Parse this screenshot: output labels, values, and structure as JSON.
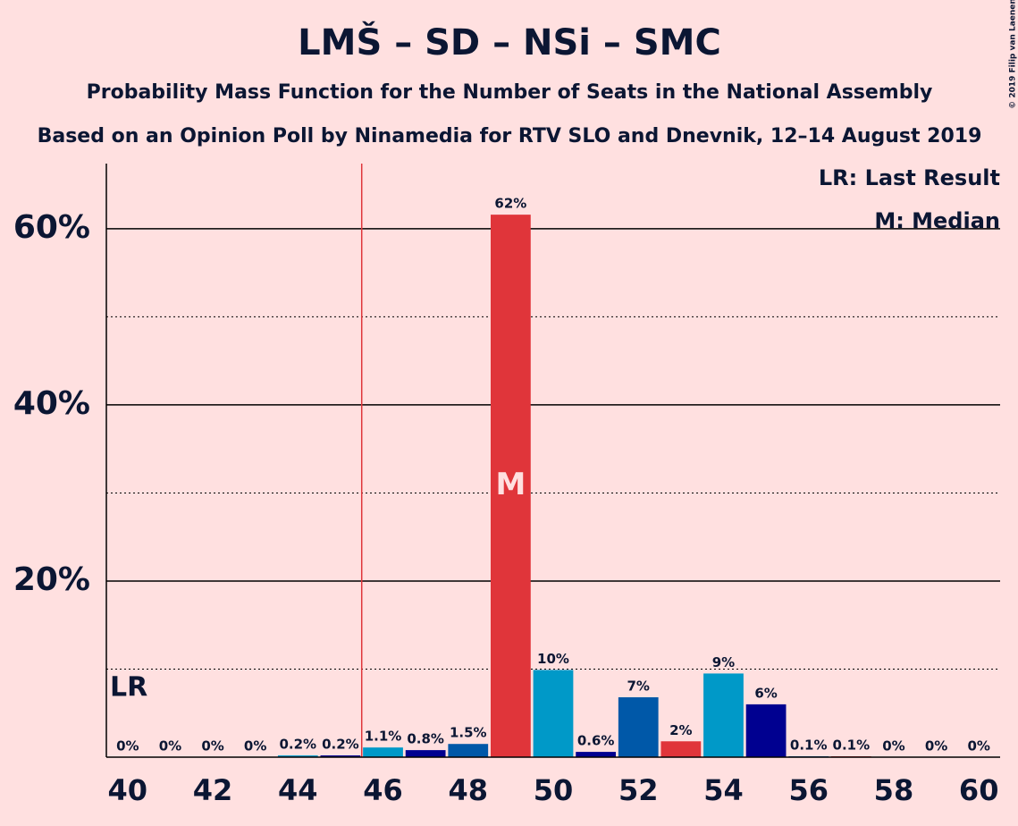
{
  "chart_data": {
    "type": "bar",
    "title": "LMŠ – SD – NSi – SMC",
    "subtitle": "Probability Mass Function for the Number of Seats in the National Assembly",
    "subtitle2": "Based on an Opinion Poll by Ninamedia for RTV SLO and Dnevnik, 12–14 August 2019",
    "copyright": "© 2019 Filip van Laenen",
    "x": [
      40,
      41,
      42,
      43,
      44,
      45,
      46,
      47,
      48,
      49,
      50,
      51,
      52,
      53,
      54,
      55,
      56,
      57,
      58,
      59,
      60
    ],
    "values": [
      0,
      0,
      0,
      0,
      0.2,
      0.2,
      1.1,
      0.8,
      1.5,
      61.6,
      9.9,
      0.6,
      6.8,
      1.8,
      9.5,
      6.0,
      0.1,
      0.1,
      0,
      0,
      0
    ],
    "value_labels": [
      "0%",
      "0%",
      "0%",
      "0%",
      "0.2%",
      "0.2%",
      "1.1%",
      "0.8%",
      "1.5%",
      "62%",
      "10%",
      "0.6%",
      "7%",
      "2%",
      "9%",
      "6%",
      "0.1%",
      "0.1%",
      "0%",
      "0%",
      "0%"
    ],
    "colors": [
      "#0099c8",
      "#000090",
      "#0058a8",
      "#e0353a",
      "#0099c8",
      "#000090",
      "#0099c8",
      "#000090",
      "#0058a8",
      "#e0353a",
      "#0099c8",
      "#000090",
      "#0058a8",
      "#e0353a",
      "#0099c8",
      "#000090",
      "#0058a8",
      "#e0353a",
      "#0099c8",
      "#000090",
      "#0058a8"
    ],
    "xlim": [
      39.5,
      60.5
    ],
    "xticks": [
      40,
      42,
      44,
      46,
      48,
      50,
      52,
      54,
      56,
      58,
      60
    ],
    "ylim": [
      0,
      67.4
    ],
    "yticks": [
      {
        "value": 20,
        "label": "20%"
      },
      {
        "value": 40,
        "label": "40%"
      },
      {
        "value": 60,
        "label": "60%"
      }
    ],
    "minor_yticks": [
      10,
      30,
      50
    ],
    "last_result": 45.5,
    "last_result_label": "LR",
    "median": 49,
    "median_label": "M",
    "legend": [
      "LR: Last Result",
      "M: Median"
    ]
  }
}
